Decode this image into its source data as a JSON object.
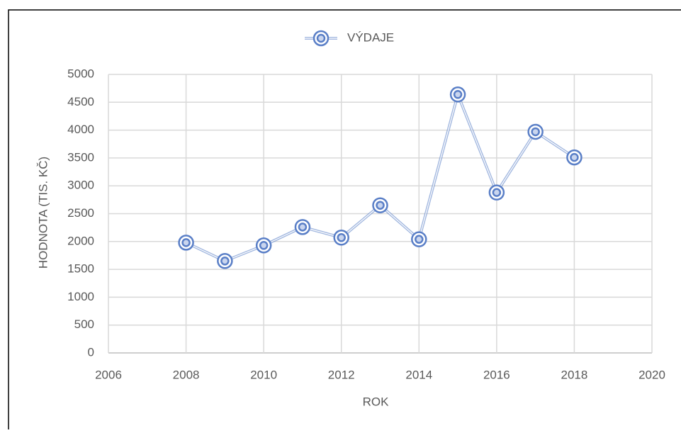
{
  "chart_data": {
    "type": "line",
    "x_label": "ROK",
    "y_label": "HODNOTA (TIS. KČ)",
    "x": [
      2008,
      2009,
      2010,
      2011,
      2012,
      2013,
      2014,
      2015,
      2016,
      2017,
      2018
    ],
    "series": [
      {
        "name": "VÝDAJE",
        "color": "#5a7fc7",
        "values": [
          1980,
          1650,
          1930,
          2260,
          2070,
          2650,
          2040,
          4640,
          2880,
          3970,
          3510
        ]
      }
    ],
    "xlim": [
      2006,
      2020
    ],
    "xticks": [
      2006,
      2008,
      2010,
      2012,
      2014,
      2016,
      2018,
      2020
    ],
    "ylim": [
      0,
      5000
    ],
    "yticks": [
      0,
      500,
      1000,
      1500,
      2000,
      2500,
      3000,
      3500,
      4000,
      4500,
      5000
    ],
    "grid": true,
    "legend": "top",
    "marker": "double-circle"
  }
}
